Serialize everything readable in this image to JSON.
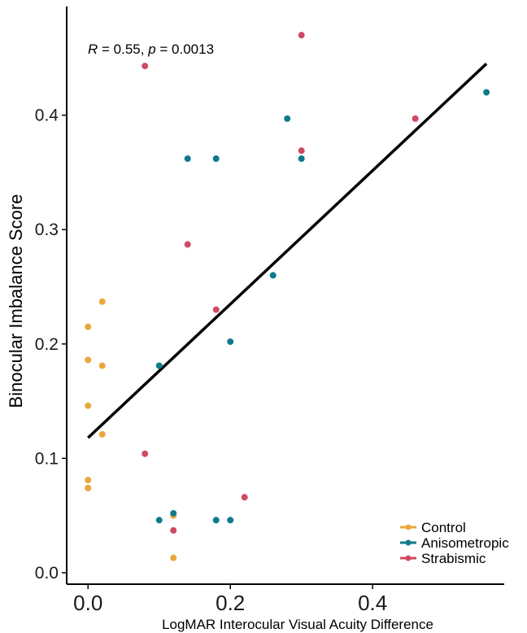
{
  "chart_data": {
    "type": "scatter",
    "xlabel": "LogMAR Interocular Visual Acuity Difference",
    "ylabel": "Binocular Imbalance Score",
    "xlim": [
      -0.03,
      0.585
    ],
    "ylim": [
      -0.01,
      0.495
    ],
    "x_ticks": [
      0.0,
      0.2,
      0.4
    ],
    "x_tick_labels": [
      "0.0",
      "0.2",
      "0.4"
    ],
    "y_ticks": [
      0.0,
      0.1,
      0.2,
      0.3,
      0.4
    ],
    "y_tick_labels": [
      "0.0",
      "0.1",
      "0.2",
      "0.3",
      "0.4"
    ],
    "grid": false,
    "legend_position": "bottom-right",
    "annotation": {
      "r_symbol": "R",
      "r_text": " = 0.55, ",
      "p_symbol": "p",
      "p_text": " = 0.0013"
    },
    "regression_line": {
      "x": [
        0.0,
        0.56
      ],
      "y": [
        0.118,
        0.445
      ],
      "color": "#000000"
    },
    "series": [
      {
        "name": "Control",
        "color": "#e8a93a",
        "points": [
          [
            0.0,
            0.215
          ],
          [
            0.0,
            0.186
          ],
          [
            0.0,
            0.146
          ],
          [
            0.0,
            0.081
          ],
          [
            0.0,
            0.074
          ],
          [
            0.02,
            0.237
          ],
          [
            0.02,
            0.181
          ],
          [
            0.02,
            0.121
          ],
          [
            0.12,
            0.05
          ],
          [
            0.12,
            0.013
          ]
        ]
      },
      {
        "name": "Anisometropic",
        "color": "#0f7a8c",
        "points": [
          [
            0.1,
            0.181
          ],
          [
            0.1,
            0.046
          ],
          [
            0.12,
            0.052
          ],
          [
            0.14,
            0.362
          ],
          [
            0.18,
            0.362
          ],
          [
            0.18,
            0.046
          ],
          [
            0.2,
            0.202
          ],
          [
            0.2,
            0.046
          ],
          [
            0.26,
            0.26
          ],
          [
            0.28,
            0.397
          ],
          [
            0.3,
            0.362
          ],
          [
            0.56,
            0.42
          ]
        ]
      },
      {
        "name": "Strabismic",
        "color": "#cf4a62",
        "points": [
          [
            0.08,
            0.443
          ],
          [
            0.08,
            0.104
          ],
          [
            0.12,
            0.037
          ],
          [
            0.14,
            0.287
          ],
          [
            0.18,
            0.23
          ],
          [
            0.22,
            0.066
          ],
          [
            0.3,
            0.47
          ],
          [
            0.3,
            0.369
          ],
          [
            0.46,
            0.397
          ]
        ]
      }
    ]
  }
}
